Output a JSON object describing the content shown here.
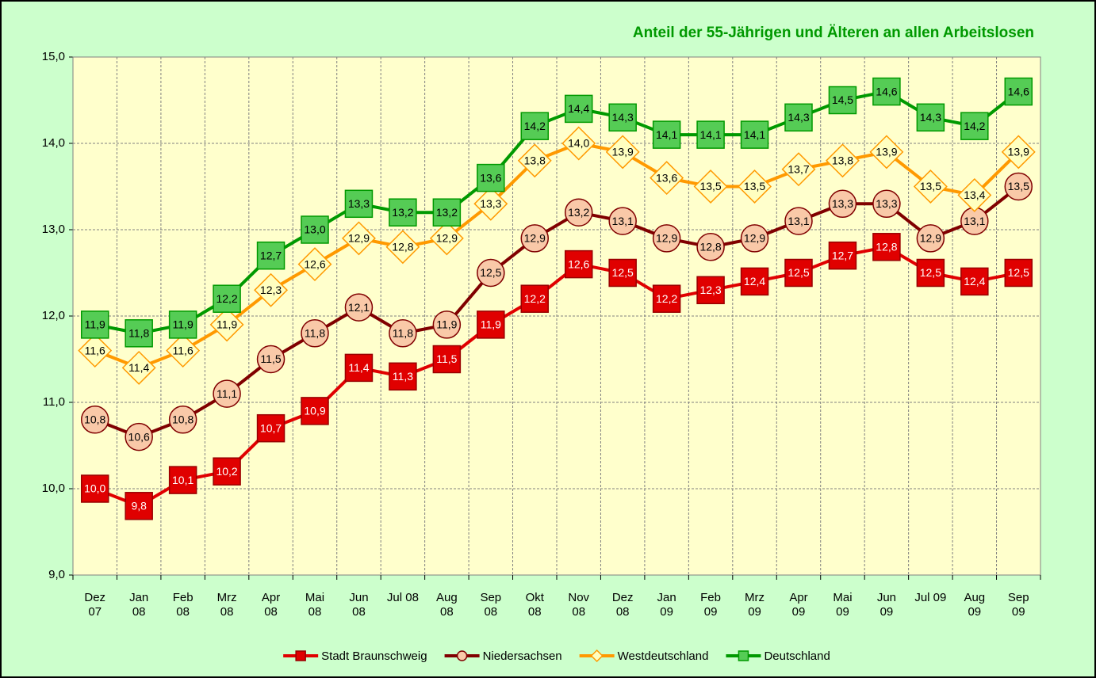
{
  "chart_data": {
    "type": "line",
    "title": "Anteil der 55-Jährigen und Älteren an allen Arbeitslosen",
    "categories": [
      "Dez 07",
      "Jan 08",
      "Feb 08",
      "Mrz 08",
      "Apr 08",
      "Mai 08",
      "Jun 08",
      "Jul 08",
      "Aug 08",
      "Sep 08",
      "Okt 08",
      "Nov 08",
      "Dez 08",
      "Jan 09",
      "Feb 09",
      "Mrz 09",
      "Apr 09",
      "Mai 09",
      "Jun 09",
      "Jul 09",
      "Aug 09",
      "Sep 09"
    ],
    "ylim": [
      9,
      15
    ],
    "yticks": [
      {
        "value": 9,
        "label": "9,0"
      },
      {
        "value": 10,
        "label": "10,0"
      },
      {
        "value": 11,
        "label": "11,0"
      },
      {
        "value": 12,
        "label": "12,0"
      },
      {
        "value": 13,
        "label": "13,0"
      },
      {
        "value": 14,
        "label": "14,0"
      },
      {
        "value": 15,
        "label": "15,0"
      }
    ],
    "grid": true,
    "legend": "bottom",
    "series": [
      {
        "name": "Stadt Braunschweig",
        "color": "#e00000",
        "marker": "square",
        "marker_fill": "#e00000",
        "label_color": "#ffffff",
        "values": [
          10.0,
          9.8,
          10.1,
          10.2,
          10.7,
          10.9,
          11.4,
          11.3,
          11.5,
          11.9,
          12.2,
          12.6,
          12.5,
          12.2,
          12.3,
          12.4,
          12.5,
          12.7,
          12.8,
          12.5,
          12.4,
          12.5
        ],
        "value_labels": [
          "10,0",
          "9,8",
          "10,1",
          "10,2",
          "10,7",
          "10,9",
          "11,4",
          "11,3",
          "11,5",
          "11,9",
          "12,2",
          "12,6",
          "12,5",
          "12,2",
          "12,3",
          "12,4",
          "12,5",
          "12,7",
          "12,8",
          "12,5",
          "12,4",
          "12,5"
        ]
      },
      {
        "name": "Niedersachsen",
        "color": "#800000",
        "marker": "circle",
        "marker_fill": "#f9c9a8",
        "label_color": "#000000",
        "values": [
          10.8,
          10.6,
          10.8,
          11.1,
          11.5,
          11.8,
          12.1,
          11.8,
          11.9,
          12.5,
          12.9,
          13.2,
          13.1,
          12.9,
          12.8,
          12.9,
          13.1,
          13.3,
          13.3,
          12.9,
          13.1,
          13.5
        ],
        "value_labels": [
          "10,8",
          "10,6",
          "10,8",
          "11,1",
          "11,5",
          "11,8",
          "12,1",
          "11,8",
          "11,9",
          "12,5",
          "12,9",
          "13,2",
          "13,1",
          "12,9",
          "12,8",
          "12,9",
          "13,1",
          "13,3",
          "13,3",
          "12,9",
          "13,1",
          "13,5"
        ]
      },
      {
        "name": "Westdeutschland",
        "color": "#ff9900",
        "marker": "diamond",
        "marker_fill": "#ffffc0",
        "label_color": "#000000",
        "values": [
          11.6,
          11.4,
          11.6,
          11.9,
          12.3,
          12.6,
          12.9,
          12.8,
          12.9,
          13.3,
          13.8,
          14.0,
          13.9,
          13.6,
          13.5,
          13.5,
          13.7,
          13.8,
          13.9,
          13.5,
          13.4,
          13.9
        ],
        "value_labels": [
          "11,6",
          "11,4",
          "11,6",
          "11,9",
          "12,3",
          "12,6",
          "12,9",
          "12,8",
          "12,9",
          "13,3",
          "13,8",
          "14,0",
          "13,9",
          "13,6",
          "13,5",
          "13,5",
          "13,7",
          "13,8",
          "13,9",
          "13,5",
          "13,4",
          "13,9"
        ]
      },
      {
        "name": "Deutschland",
        "color": "#009900",
        "marker": "square",
        "marker_fill": "#55cc55",
        "label_color": "#000000",
        "values": [
          11.9,
          11.8,
          11.9,
          12.2,
          12.7,
          13.0,
          13.3,
          13.2,
          13.2,
          13.6,
          14.2,
          14.4,
          14.3,
          14.1,
          14.1,
          14.1,
          14.3,
          14.5,
          14.6,
          14.3,
          14.2,
          14.6
        ],
        "value_labels": [
          "11,9",
          "11,8",
          "11,9",
          "12,2",
          "12,7",
          "13,0",
          "13,3",
          "13,2",
          "13,2",
          "13,6",
          "14,2",
          "14,4",
          "14,3",
          "14,1",
          "14,1",
          "14,1",
          "14,3",
          "14,5",
          "14,6",
          "14,3",
          "14,2",
          "14,6"
        ]
      }
    ]
  }
}
